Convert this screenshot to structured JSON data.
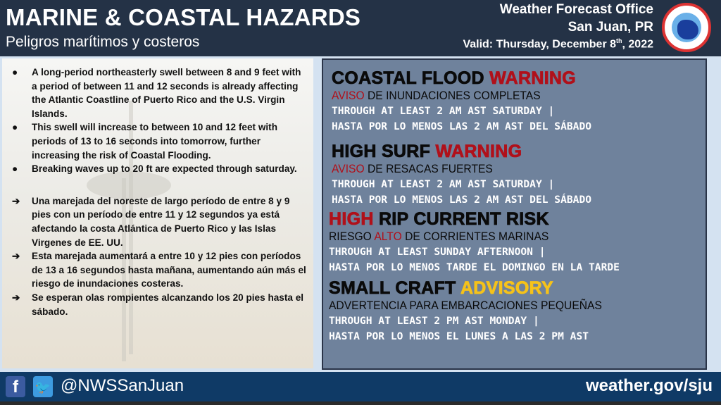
{
  "header": {
    "title": "MARINE & COASTAL HAZARDS",
    "subtitle": "Peligros marítimos y costeros",
    "office": "Weather Forecast Office",
    "location": "San Juan, PR",
    "valid_prefix": "Valid: Thursday, December 8",
    "valid_sup": "th",
    "valid_suffix": ", 2022",
    "logo_text": "NATIONAL WEATHER SERVICE"
  },
  "left": {
    "english": [
      "A long-period northeasterly swell between 8 and 9 feet with a period of between 11 and 12 seconds is already affecting the Atlantic Coastline of Puerto Rico and the U.S. Virgin Islands.",
      "This swell will increase to between 10 and 12 feet with periods of 13 to 16 seconds into tomorrow, further increasing the risk of Coastal Flooding.",
      "Breaking waves up to 20 ft are expected through saturday."
    ],
    "spanish": [
      "Una marejada del noreste de largo período de entre 8 y 9 pies con un período de entre 11 y 12 segundos ya está afectando la costa Atlántica de Puerto Rico y las Islas Virgenes de EE. UU.",
      "Esta marejada aumentará a entre 10 y 12 pies con períodos de 13 a 16 segundos hasta mañana, aumentando aún más el riesgo de inundaciones costeras.",
      "Se esperan olas rompientes alcanzando los 20 pies hasta el sábado."
    ],
    "bullet": "●",
    "arrow": "➔"
  },
  "hazards": [
    {
      "h1": "COASTAL FLOOD",
      "h2": "WARNING",
      "h2_color": "#b0101a",
      "es1": "AVISO",
      "es2": " DE INUNDACIONES COMPLETAS",
      "es3": "",
      "line1": "THROUGH AT LEAST 2 AM AST SATURDAY |",
      "line2": "HASTA POR LO MENOS LAS 2 AM AST DEL SÁBADO"
    },
    {
      "h1": "HIGH SURF",
      "h2": "WARNING",
      "h2_color": "#b0101a",
      "es1": "AVISO",
      "es2": " DE RESACAS FUERTES",
      "es3": "",
      "line1": "THROUGH AT LEAST 2 AM AST SATURDAY |",
      "line2": "HASTA POR LO MENOS LAS 2 AM AST DEL SÁBADO"
    },
    {
      "h0": "HIGH",
      "h1": " RIP CURRENT RISK",
      "es0": "RIESGO ",
      "es1": "ALTO",
      "es2": " DE CORRIENTES MARINAS",
      "line1": "THROUGH AT LEAST SUNDAY AFTERNOON |",
      "line2": "HASTA POR LO MENOS TARDE EL DOMINGO EN LA TARDE"
    },
    {
      "h1": "SMALL CRAFT",
      "h2": "ADVISORY",
      "h2_color": "#f5c21a",
      "es": "ADVERTENCIA PARA EMBARCACIONES PEQUEÑAS",
      "line1": "THROUGH AT LEAST 2 PM AST MONDAY |",
      "line2": "HASTA POR LO MENOS EL LUNES A LAS 2 PM AST"
    }
  ],
  "footer": {
    "facebook_icon": "facebook-icon",
    "twitter_icon": "twitter-icon",
    "handle": "@NWSSanJuan",
    "site": "weather.gov/sju"
  }
}
